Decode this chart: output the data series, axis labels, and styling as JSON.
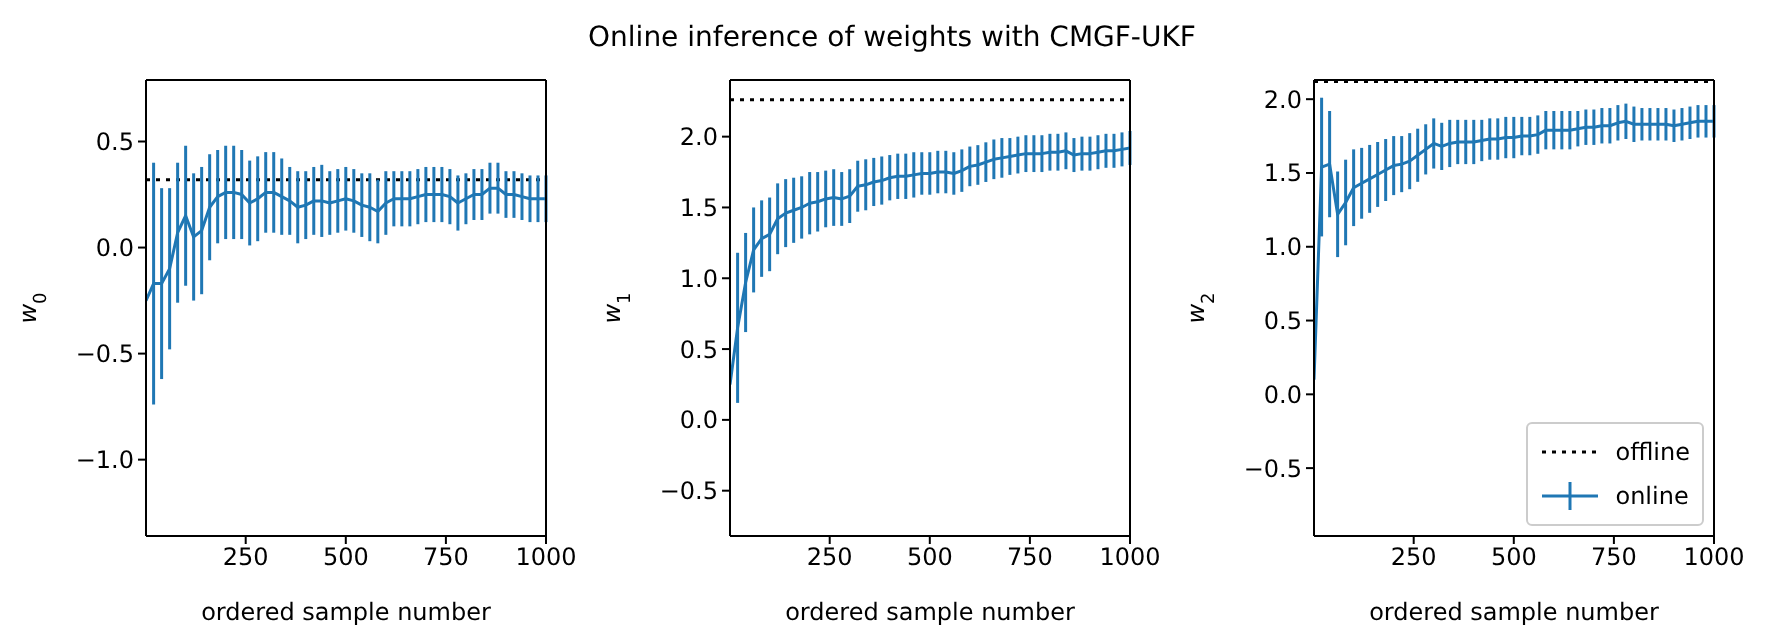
{
  "chart_data": [
    {
      "type": "line",
      "xlabel": "ordered sample number",
      "ylabel": "w$_{0}$",
      "xlim": [
        1,
        1000
      ],
      "xticks": [
        250,
        500,
        750,
        1000
      ],
      "ylim": [
        -1.36,
        0.79
      ],
      "yticks": [
        {
          "value": -1.0,
          "label": "−1.0"
        },
        {
          "value": -0.5,
          "label": "−0.5"
        },
        {
          "value": 0,
          "label": "0.0"
        },
        {
          "value": 0.5,
          "label": "0.5"
        }
      ],
      "marker": "none",
      "series": [
        {
          "type": "line",
          "color": "#000000",
          "line_style": "dotted",
          "x": [
            1,
            1000
          ],
          "values": [
            0.32,
            0.32
          ]
        },
        {
          "type": "line",
          "color": "#1f77b4",
          "line_style": "solid",
          "x": [
            1,
            20,
            40,
            60,
            80,
            100,
            120,
            140,
            160,
            180,
            200,
            220,
            240,
            260,
            280,
            300,
            320,
            340,
            360,
            380,
            400,
            420,
            440,
            460,
            480,
            500,
            520,
            540,
            560,
            580,
            600,
            620,
            640,
            660,
            680,
            700,
            720,
            740,
            760,
            780,
            800,
            820,
            840,
            860,
            880,
            900,
            920,
            940,
            960,
            980,
            1000
          ],
          "values": [
            -0.25,
            -0.17,
            -0.17,
            -0.1,
            0.07,
            0.15,
            0.05,
            0.08,
            0.19,
            0.24,
            0.26,
            0.26,
            0.25,
            0.21,
            0.23,
            0.26,
            0.26,
            0.24,
            0.22,
            0.19,
            0.2,
            0.22,
            0.22,
            0.21,
            0.22,
            0.23,
            0.22,
            0.2,
            0.19,
            0.17,
            0.21,
            0.23,
            0.23,
            0.23,
            0.24,
            0.25,
            0.25,
            0.25,
            0.24,
            0.21,
            0.23,
            0.25,
            0.25,
            0.28,
            0.28,
            0.25,
            0.25,
            0.24,
            0.23,
            0.23,
            0.23
          ],
          "errors": [
            null,
            0.57,
            0.45,
            0.38,
            0.33,
            0.33,
            0.3,
            0.3,
            0.25,
            0.22,
            0.22,
            0.22,
            0.21,
            0.2,
            0.2,
            0.19,
            0.19,
            0.18,
            0.16,
            0.17,
            0.16,
            0.16,
            0.17,
            0.15,
            0.15,
            0.15,
            0.15,
            0.15,
            0.16,
            0.15,
            0.15,
            0.13,
            0.13,
            0.13,
            0.13,
            0.13,
            0.13,
            0.13,
            0.13,
            0.13,
            0.12,
            0.12,
            0.12,
            0.12,
            0.12,
            0.11,
            0.11,
            0.11,
            0.11,
            0.11,
            0.11
          ]
        }
      ]
    },
    {
      "type": "line",
      "title": "Online inference of weights with CMGF-UKF",
      "xlabel": "ordered sample number",
      "ylabel": "w$_{1}$",
      "xlim": [
        1,
        1000
      ],
      "xticks": [
        250,
        500,
        750,
        1000
      ],
      "ylim": [
        -0.82,
        2.4
      ],
      "yticks": [
        {
          "value": -0.5,
          "label": "−0.5"
        },
        {
          "value": 0,
          "label": "0.0"
        },
        {
          "value": 0.5,
          "label": "0.5"
        },
        {
          "value": 1.0,
          "label": "1.0"
        },
        {
          "value": 1.5,
          "label": "1.5"
        },
        {
          "value": 2.0,
          "label": "2.0"
        }
      ],
      "marker": "none",
      "series": [
        {
          "type": "line",
          "color": "#000000",
          "line_style": "dotted",
          "x": [
            1,
            1000
          ],
          "values": [
            2.26,
            2.26
          ]
        },
        {
          "type": "line",
          "color": "#1f77b4",
          "line_style": "solid",
          "x": [
            1,
            20,
            40,
            60,
            80,
            100,
            120,
            140,
            160,
            180,
            200,
            220,
            240,
            260,
            280,
            300,
            320,
            340,
            360,
            380,
            400,
            420,
            440,
            460,
            480,
            500,
            520,
            540,
            560,
            580,
            600,
            620,
            640,
            660,
            680,
            700,
            720,
            740,
            760,
            780,
            800,
            820,
            840,
            860,
            880,
            900,
            920,
            940,
            960,
            980,
            1000
          ],
          "values": [
            0.25,
            0.65,
            0.97,
            1.2,
            1.28,
            1.31,
            1.42,
            1.46,
            1.48,
            1.5,
            1.53,
            1.54,
            1.56,
            1.57,
            1.56,
            1.58,
            1.65,
            1.66,
            1.68,
            1.69,
            1.71,
            1.72,
            1.72,
            1.73,
            1.74,
            1.74,
            1.75,
            1.75,
            1.74,
            1.76,
            1.79,
            1.8,
            1.82,
            1.84,
            1.85,
            1.86,
            1.87,
            1.88,
            1.88,
            1.88,
            1.89,
            1.89,
            1.9,
            1.87,
            1.88,
            1.88,
            1.89,
            1.9,
            1.9,
            1.91,
            1.92
          ],
          "errors": [
            null,
            0.53,
            0.35,
            0.3,
            0.27,
            0.26,
            0.25,
            0.24,
            0.23,
            0.22,
            0.22,
            0.21,
            0.2,
            0.2,
            0.19,
            0.19,
            0.18,
            0.18,
            0.17,
            0.17,
            0.16,
            0.16,
            0.16,
            0.16,
            0.15,
            0.15,
            0.15,
            0.15,
            0.15,
            0.15,
            0.14,
            0.14,
            0.14,
            0.14,
            0.14,
            0.13,
            0.13,
            0.13,
            0.13,
            0.13,
            0.13,
            0.13,
            0.13,
            0.12,
            0.12,
            0.12,
            0.12,
            0.12,
            0.12,
            0.12,
            0.12
          ]
        }
      ]
    },
    {
      "type": "line",
      "xlabel": "ordered sample number",
      "ylabel": "w$_{2}$",
      "xlim": [
        1,
        1000
      ],
      "xticks": [
        250,
        500,
        750,
        1000
      ],
      "ylim": [
        -0.96,
        2.13
      ],
      "yticks": [
        {
          "value": -0.5,
          "label": "−0.5"
        },
        {
          "value": 0,
          "label": "0.0"
        },
        {
          "value": 0.5,
          "label": "0.5"
        },
        {
          "value": 1.0,
          "label": "1.0"
        },
        {
          "value": 1.5,
          "label": "1.5"
        },
        {
          "value": 2.0,
          "label": "2.0"
        }
      ],
      "marker": "none",
      "legend": "bottom right",
      "series": [
        {
          "type": "line",
          "name": "offline",
          "color": "#000000",
          "line_style": "dotted",
          "x": [
            1,
            1000
          ],
          "values": [
            2.12,
            2.12
          ]
        },
        {
          "type": "line",
          "name": "online",
          "color": "#1f77b4",
          "line_style": "solid",
          "x": [
            1,
            20,
            40,
            60,
            80,
            100,
            120,
            140,
            160,
            180,
            200,
            220,
            240,
            260,
            280,
            300,
            320,
            340,
            360,
            380,
            400,
            420,
            440,
            460,
            480,
            500,
            520,
            540,
            560,
            580,
            600,
            620,
            640,
            660,
            680,
            700,
            720,
            740,
            760,
            780,
            800,
            820,
            840,
            860,
            880,
            900,
            920,
            940,
            960,
            980,
            1000
          ],
          "values": [
            0.1,
            1.54,
            1.56,
            1.22,
            1.3,
            1.4,
            1.43,
            1.46,
            1.49,
            1.52,
            1.55,
            1.56,
            1.58,
            1.62,
            1.66,
            1.7,
            1.68,
            1.7,
            1.71,
            1.71,
            1.71,
            1.72,
            1.73,
            1.73,
            1.74,
            1.74,
            1.75,
            1.75,
            1.76,
            1.79,
            1.79,
            1.79,
            1.79,
            1.8,
            1.81,
            1.81,
            1.82,
            1.82,
            1.84,
            1.85,
            1.83,
            1.83,
            1.83,
            1.83,
            1.83,
            1.82,
            1.83,
            1.84,
            1.85,
            1.85,
            1.85
          ],
          "errors": [
            null,
            0.47,
            0.36,
            0.29,
            0.29,
            0.26,
            0.24,
            0.23,
            0.22,
            0.21,
            0.2,
            0.19,
            0.19,
            0.18,
            0.17,
            0.17,
            0.16,
            0.16,
            0.15,
            0.15,
            0.15,
            0.14,
            0.14,
            0.14,
            0.14,
            0.14,
            0.13,
            0.13,
            0.13,
            0.13,
            0.13,
            0.13,
            0.13,
            0.12,
            0.12,
            0.12,
            0.12,
            0.12,
            0.12,
            0.12,
            0.12,
            0.11,
            0.11,
            0.11,
            0.11,
            0.11,
            0.11,
            0.11,
            0.11,
            0.11,
            0.11
          ]
        }
      ]
    }
  ]
}
